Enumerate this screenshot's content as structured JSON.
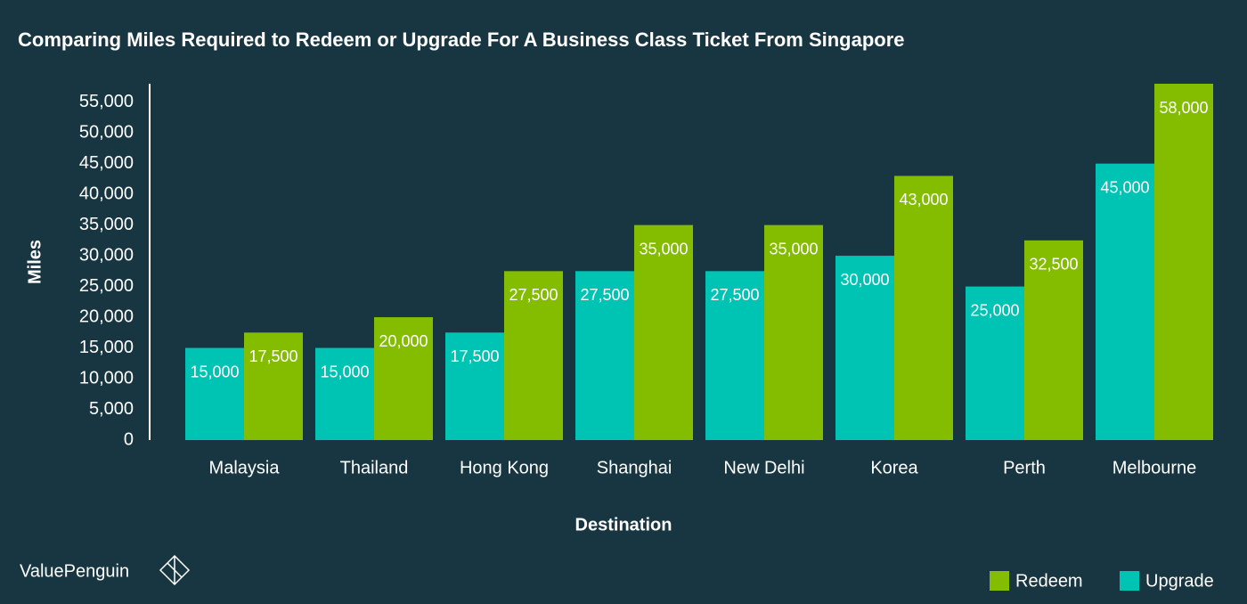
{
  "chart_data": {
    "type": "bar",
    "title": "Comparing Miles Required to Redeem or Upgrade For A Business Class Ticket From Singapore",
    "x_label": "Destination",
    "y_label": "Miles",
    "categories": [
      "Malaysia",
      "Thailand",
      "Hong Kong",
      "Shanghai",
      "New Delhi",
      "Korea",
      "Perth",
      "Melbourne"
    ],
    "series": [
      {
        "name": "Upgrade",
        "color": "#00c4b3",
        "values": [
          15000,
          15000,
          17500,
          27500,
          27500,
          30000,
          25000,
          45000
        ],
        "value_labels": [
          "15,000",
          "15,000",
          "17,500",
          "27,500",
          "27,500",
          "30,000",
          "25,000",
          "45,000"
        ]
      },
      {
        "name": "Redeem",
        "color": "#84bc00",
        "values": [
          17500,
          20000,
          27500,
          35000,
          35000,
          43000,
          32500,
          58000
        ],
        "value_labels": [
          "17,500",
          "20,000",
          "27,500",
          "35,000",
          "35,000",
          "43,000",
          "32,500",
          "58,000"
        ]
      }
    ],
    "ylim": [
      0,
      58000
    ],
    "yticks": [
      0,
      {
        "value": 5000,
        "label": "5,000"
      },
      {
        "value": 10000,
        "label": "10,000"
      },
      {
        "value": 15000,
        "label": "15,000"
      },
      {
        "value": 20000,
        "label": "20,000"
      },
      {
        "value": 25000,
        "label": "25,000"
      },
      {
        "value": 30000,
        "label": "30,000"
      },
      {
        "value": 35000,
        "label": "35,000"
      },
      {
        "value": 40000,
        "label": "40,000"
      },
      {
        "value": 45000,
        "label": "45,000"
      },
      {
        "value": 50000,
        "label": "50,000"
      },
      {
        "value": 55000,
        "label": "55,000"
      }
    ],
    "legend": "bottom-right",
    "brand": "ValuePenguin"
  }
}
